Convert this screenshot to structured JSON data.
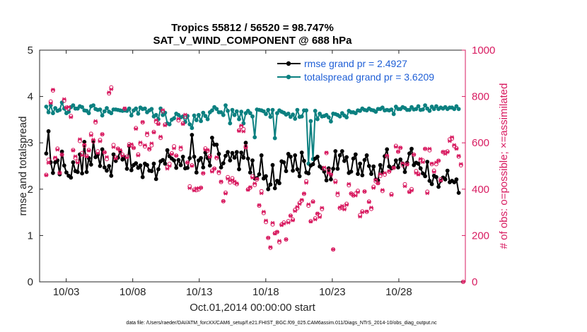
{
  "chart_data": {
    "type": "line",
    "title": "Tropics 55812 / 56520 = 98.747%",
    "subtitle": "SAT_V_WIND_COMPONENT @ 688 hPa",
    "xlabel": "Oct.01,2014 00:00:00 start",
    "ylabel": "rmse and totalspread",
    "y2label": "# of obs: o=possible; ×=assimilated",
    "x_range_days": [
      1.0,
      33.0
    ],
    "ylim": [
      0,
      5
    ],
    "y2lim": [
      0,
      1000
    ],
    "x_ticks": [
      {
        "day": 3,
        "label": "10/03"
      },
      {
        "day": 8,
        "label": "10/08"
      },
      {
        "day": 13,
        "label": "10/13"
      },
      {
        "day": 18,
        "label": "10/18"
      },
      {
        "day": 23,
        "label": "10/23"
      },
      {
        "day": 28,
        "label": "10/28"
      }
    ],
    "y_ticks": [
      "0",
      "1",
      "2",
      "3",
      "4",
      "5"
    ],
    "y2_ticks": [
      "0",
      "200",
      "400",
      "600",
      "800",
      "1000"
    ],
    "legend": {
      "position": "top-right",
      "entries": [
        "rmse grand pr = 2.4927",
        "totalspread grand pr = 3.6209"
      ]
    },
    "colors": {
      "rmse": "#000000",
      "totalspread": "#0b8080",
      "obs": "#d81b60",
      "legend_text": "#1f5fd6"
    },
    "series": [
      {
        "name": "rmse",
        "axis": "left",
        "values": [
          2.77,
          3.25,
          2.58,
          2.35,
          2.58,
          2.62,
          2.32,
          2.81,
          2.51,
          2.36,
          2.29,
          2.25,
          2.58,
          2.39,
          2.37,
          2.75,
          2.34,
          3.02,
          2.37,
          2.67,
          2.53,
          3.04,
          2.69,
          2.75,
          2.5,
          2.86,
          2.47,
          2.4,
          2.5,
          2.29,
          2.75,
          2.61,
          2.68,
          2.82,
          2.64,
          2.69,
          2.44,
          2.93,
          2.41,
          2.52,
          2.56,
          2.46,
          2.51,
          2.26,
          2.55,
          2.52,
          2.4,
          2.39,
          2.55,
          2.22,
          2.43,
          2.6,
          2.63,
          2.55,
          2.84,
          2.71,
          2.66,
          2.62,
          2.46,
          2.63,
          2.52,
          2.7,
          2.45,
          2.46,
          2.67,
          3.17,
          2.7,
          2.36,
          2.62,
          2.67,
          2.47,
          2.79,
          2.67,
          2.51,
          3.11,
          2.96,
          2.96,
          2.76,
          2.47,
          2.56,
          2.72,
          2.8,
          2.62,
          2.78,
          2.68,
          2.8,
          2.43,
          2.79,
          2.68,
          3.0,
          2.66,
          2.36,
          2.62,
          2.23,
          2.24,
          2.32,
          2.73,
          2.23,
          2.28,
          2.0,
          2.1,
          2.52,
          2.02,
          2.18,
          2.13,
          2.6,
          2.58,
          2.39,
          2.76,
          2.7,
          2.4,
          2.73,
          2.43,
          2.28,
          2.79,
          2.61,
          2.36,
          2.34,
          2.51,
          2.54,
          2.66,
          2.7,
          2.49,
          2.45,
          2.38,
          2.19,
          2.45,
          2.21,
          2.44,
          2.82,
          2.44,
          2.73,
          2.82,
          2.61,
          2.69,
          2.35,
          2.38,
          2.66,
          2.75,
          2.33,
          2.55,
          2.3,
          2.63,
          2.73,
          2.5,
          2.33,
          2.49,
          2.21,
          2.19,
          2.52,
          2.36,
          2.71,
          2.86,
          2.49,
          2.45,
          2.48,
          2.62,
          2.47,
          2.64,
          2.55,
          2.37,
          2.57,
          2.77,
          2.87,
          2.52,
          2.57,
          2.55,
          2.45,
          2.34,
          2.28,
          2.59,
          2.18,
          2.11,
          2.29,
          2.26,
          2.05,
          2.18,
          2.25,
          2.21,
          2.4,
          2.15,
          2.18,
          2.15,
          2.21,
          1.92
        ]
      },
      {
        "name": "totalspread",
        "axis": "left",
        "values": [
          3.78,
          3.66,
          3.81,
          3.64,
          3.75,
          3.69,
          3.71,
          3.87,
          3.74,
          3.64,
          3.67,
          3.77,
          3.81,
          3.74,
          3.74,
          3.79,
          3.77,
          3.7,
          3.69,
          3.64,
          3.79,
          3.81,
          3.73,
          3.71,
          3.72,
          3.59,
          3.68,
          3.75,
          3.67,
          3.64,
          3.72,
          3.72,
          3.71,
          3.7,
          3.69,
          3.7,
          3.69,
          3.74,
          3.59,
          3.7,
          3.74,
          3.63,
          3.76,
          3.73,
          3.74,
          3.66,
          3.7,
          3.73,
          3.57,
          3.6,
          3.51,
          3.74,
          3.6,
          3.65,
          3.42,
          3.4,
          3.5,
          3.53,
          3.63,
          3.6,
          3.55,
          3.57,
          3.45,
          3.58,
          3.4,
          3.32,
          3.59,
          3.49,
          3.6,
          3.47,
          3.65,
          3.58,
          3.51,
          3.66,
          3.7,
          3.77,
          3.73,
          3.66,
          3.66,
          3.6,
          3.81,
          3.69,
          3.42,
          3.71,
          3.6,
          3.68,
          3.51,
          3.67,
          3.42,
          3.64,
          3.69,
          3.64,
          3.57,
          3.12,
          3.72,
          3.71,
          3.7,
          3.68,
          3.62,
          3.71,
          3.56,
          3.71,
          3.1,
          3.64,
          3.7,
          3.67,
          3.65,
          3.61,
          3.63,
          3.56,
          3.61,
          3.52,
          3.71,
          3.56,
          3.57,
          3.7,
          3.7,
          2.55,
          3.47,
          2.65,
          3.69,
          3.51,
          3.63,
          3.57,
          3.58,
          3.6,
          3.55,
          3.46,
          3.63,
          3.62,
          3.6,
          3.57,
          3.64,
          3.59,
          3.55,
          3.69,
          3.66,
          3.66,
          3.64,
          3.7,
          3.69,
          3.74,
          3.71,
          3.7,
          3.74,
          3.71,
          3.7,
          3.67,
          3.73,
          3.73,
          3.76,
          3.7,
          3.71,
          3.7,
          3.72,
          3.62,
          3.78,
          3.73,
          3.73,
          3.77,
          3.75,
          3.71,
          3.71,
          3.77,
          3.72,
          3.73,
          3.79,
          3.71,
          3.72,
          3.81,
          3.74,
          3.69,
          3.78,
          3.73,
          3.79,
          3.73,
          3.76,
          3.74,
          3.77,
          3.73,
          3.76,
          3.76,
          3.73,
          3.79,
          3.73
        ]
      },
      {
        "name": "obs_possible",
        "axis": "right",
        "values": [
          462,
          527,
          778,
          826,
          533,
          575,
          471,
          549,
          782,
          752,
          747,
          716,
          569,
          534,
          519,
          608,
          556,
          588,
          544,
          569,
          639,
          606,
          688,
          563,
          612,
          637,
          559,
          530,
          813,
          839,
          591,
          537,
          575,
          563,
          549,
          747,
          541,
          594,
          590,
          578,
          664,
          550,
          595,
          688,
          584,
          634,
          572,
          589,
          647,
          691,
          683,
          621,
          736,
          679,
          495,
          509,
          555,
          585,
          545,
          697,
          573,
          684,
          713,
          515,
          412,
          503,
          398,
          396,
          399,
          406,
          468,
          576,
          566,
          543,
          480,
          489,
          534,
          470,
          431,
          348,
          385,
          452,
          429,
          447,
          428,
          422,
          654,
          670,
          659,
          584,
          399,
          406,
          455,
          418,
          442,
          329,
          391,
          297,
          258,
          190,
          147,
          248,
          210,
          215,
          171,
          248,
          256,
          183,
          262,
          286,
          269,
          311,
          318,
          341,
          351,
          380,
          434,
          329,
          262,
          347,
          274,
          294,
          287,
          314,
          488,
          556,
          480,
          462,
          140,
          435,
          375,
          318,
          319,
          319,
          337,
          417,
          381,
          373,
          381,
          393,
          288,
          304,
          390,
          302,
          347,
          315,
          410,
          434,
          426,
          457,
          392,
          463,
          541,
          476,
          379,
          492,
          587,
          562,
          578,
          503,
          421,
          508,
          389,
          400,
          549,
          478,
          466,
          525,
          524,
          574,
          389,
          568,
          508,
          480,
          508,
          523,
          443,
          560,
          559,
          563,
          615,
          618,
          586,
          577,
          541,
          503,
          0
        ]
      },
      {
        "name": "obs_assimilated",
        "axis": "right",
        "values": [
          460,
          513,
          771,
          830,
          537,
          570,
          469,
          549,
          789,
          752,
          755,
          710,
          567,
          542,
          514,
          616,
          546,
          593,
          541,
          566,
          632,
          614,
          694,
          555,
          606,
          637,
          559,
          539,
          818,
          831,
          581,
          532,
          574,
          569,
          544,
          749,
          536,
          587,
          594,
          578,
          660,
          545,
          602,
          690,
          590,
          642,
          575,
          598,
          645,
          698,
          681,
          627,
          742,
          675,
          488,
          500,
          551,
          576,
          544,
          704,
          581,
          681,
          722,
          515,
          404,
          500,
          394,
          404,
          405,
          406,
          469,
          570,
          569,
          538,
          475,
          488,
          538,
          476,
          433,
          348,
          381,
          445,
          437,
          440,
          433,
          425,
          651,
          675,
          649,
          578,
          397,
          409,
          449,
          425,
          445,
          331,
          382,
          303,
          265,
          190,
          150,
          255,
          208,
          216,
          177,
          244,
          251,
          183,
          255,
          285,
          265,
          305,
          324,
          336,
          354,
          381,
          427,
          335,
          260,
          345,
          269,
          295,
          279,
          320,
          494,
          558,
          470,
          464,
          140,
          429,
          383,
          321,
          328,
          312,
          332,
          423,
          381,
          373,
          372,
          387,
          281,
          300,
          390,
          304,
          344,
          321,
          405,
          441,
          425,
          465,
          397,
          470,
          546,
          478,
          374,
          493,
          582,
          562,
          579,
          512,
          412,
          506,
          387,
          394,
          549,
          470,
          463,
          531,
          516,
          574,
          382,
          575,
          511,
          474,
          516,
          523,
          436,
          561,
          552,
          560,
          607,
          625,
          591,
          574,
          544,
          509,
          0
        ]
      }
    ]
  }
}
